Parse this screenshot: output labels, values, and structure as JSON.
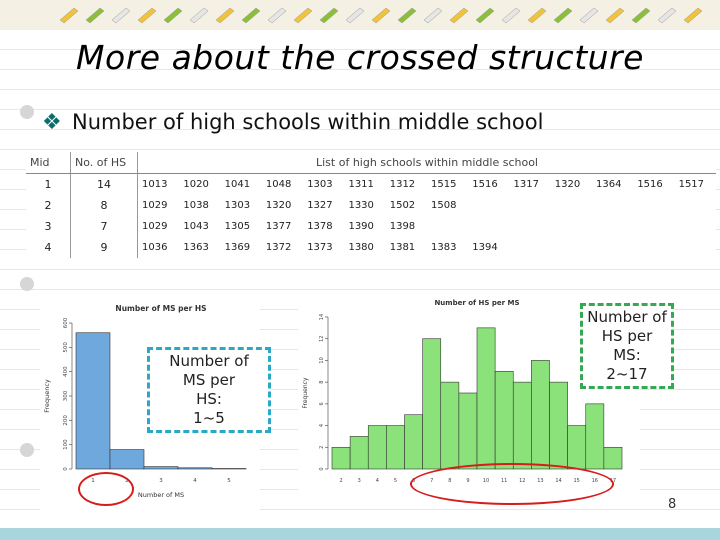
{
  "slide": {
    "title": "More about the crossed structure",
    "bullet": "Number of high schools within middle school",
    "page_number": "8",
    "callout_left": [
      "Number of",
      "MS per",
      "HS:",
      "1~5"
    ],
    "callout_right": [
      "Number of",
      "HS per",
      "MS:",
      "2~17"
    ]
  },
  "table": {
    "headers": [
      "Mid",
      "No. of HS",
      "List of high schools within middle school"
    ],
    "rows": [
      {
        "mid": "1",
        "count": "14",
        "schools": [
          "1013",
          "1020",
          "1041",
          "1048",
          "1303",
          "1311",
          "1312",
          "1515",
          "1516",
          "1317",
          "1320",
          "1364",
          "1516",
          "1517"
        ]
      },
      {
        "mid": "2",
        "count": "8",
        "schools": [
          "1029",
          "1038",
          "1303",
          "1320",
          "1327",
          "1330",
          "1502",
          "1508"
        ]
      },
      {
        "mid": "3",
        "count": "7",
        "schools": [
          "1029",
          "1043",
          "1305",
          "1377",
          "1378",
          "1390",
          "1398"
        ]
      },
      {
        "mid": "4",
        "count": "9",
        "schools": [
          "1036",
          "1363",
          "1369",
          "1372",
          "1373",
          "1380",
          "1381",
          "1383",
          "1394"
        ]
      }
    ]
  },
  "chart_data": [
    {
      "type": "bar",
      "title": "Number of MS per HS",
      "xlabel": "Number of MS",
      "ylabel": "Frequency",
      "categories": [
        "1",
        "2",
        "3",
        "4",
        "5"
      ],
      "values": [
        560,
        80,
        10,
        5,
        2
      ],
      "ylim": [
        0,
        600
      ],
      "y_ticks": [
        "0",
        "100",
        "200",
        "300",
        "400",
        "500",
        "600"
      ],
      "color": "#6fa8dc"
    },
    {
      "type": "bar",
      "title": "Number of HS per MS",
      "xlabel": "",
      "ylabel": "Frequency",
      "categories": [
        "2",
        "3",
        "4",
        "5",
        "6",
        "7",
        "8",
        "9",
        "10",
        "11",
        "12",
        "13",
        "14",
        "15",
        "16",
        "17"
      ],
      "values": [
        2,
        3,
        4,
        4,
        5,
        12,
        8,
        7,
        13,
        9,
        8,
        10,
        8,
        4,
        6,
        2
      ],
      "ylim": [
        0,
        14
      ],
      "y_ticks": [
        "0",
        "2",
        "4",
        "6",
        "8",
        "10",
        "12",
        "14"
      ],
      "color": "#8be27a"
    }
  ],
  "colors": {
    "accent": "#0b6e6e",
    "callout_left": "#2aa8c8",
    "callout_right": "#34a853",
    "ellipse": "#d81b1b"
  }
}
